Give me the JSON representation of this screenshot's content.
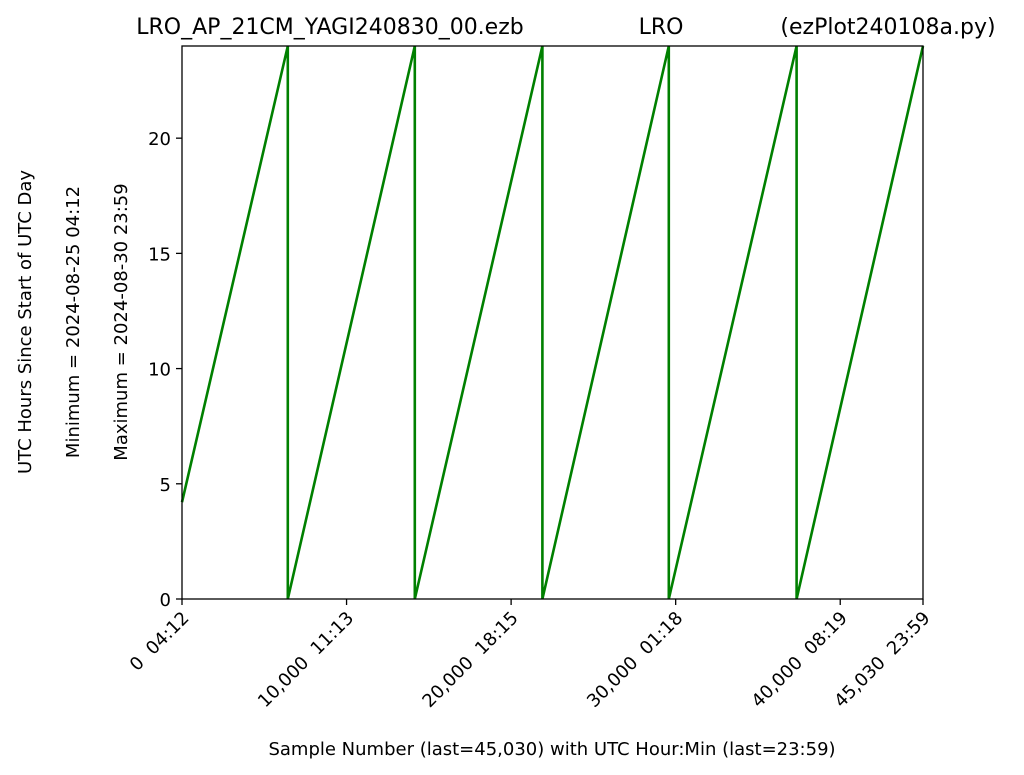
{
  "header": {
    "left": "LRO_AP_21CM_YAGI240830_00.ezb",
    "center": "LRO",
    "right": "(ezPlot240108a.py)"
  },
  "ylabels": {
    "main": "UTC Hours Since Start of UTC Day",
    "min": "Minimum = 2024-08-25   04:12",
    "max": "Maximum = 2024-08-30   23:59"
  },
  "xlabel": "Sample Number (last=45,030) with UTC Hour:Min (last=23:59)",
  "colors": {
    "series": "#008000"
  },
  "chart_data": {
    "type": "line",
    "xlim": [
      0,
      45030
    ],
    "ylim": [
      0,
      24
    ],
    "yticks": [
      0,
      5,
      10,
      15,
      20
    ],
    "xticks": [
      {
        "value": 0,
        "label": "0  04:12"
      },
      {
        "value": 10000,
        "label": "10,000  11:13"
      },
      {
        "value": 20000,
        "label": "20,000  18:15"
      },
      {
        "value": 30000,
        "label": "30,000  01:18"
      },
      {
        "value": 40000,
        "label": "40,000  08:19"
      },
      {
        "value": 45030,
        "label": "45,030  23:59"
      }
    ],
    "series": [
      {
        "x": [
          0,
          6430,
          6430,
          14150,
          14150,
          21900,
          21900,
          29580,
          29580,
          37350,
          37350,
          45030
        ],
        "y": [
          4.2,
          24,
          0,
          24,
          0,
          24,
          0,
          24,
          0,
          24,
          0,
          24
        ]
      }
    ]
  }
}
